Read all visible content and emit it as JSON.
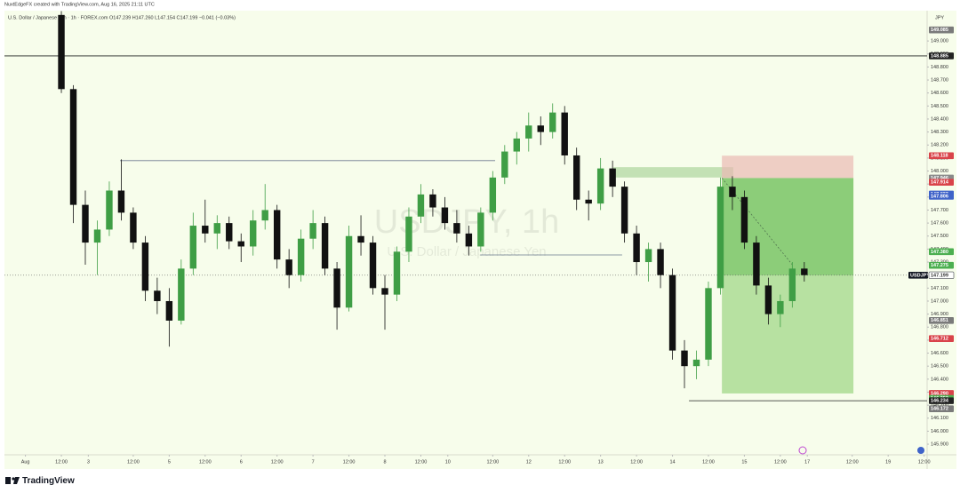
{
  "header": {
    "credit": "NuxtEdgeFX created with TradingView.com, Aug 16, 2025 21:11 UTC",
    "legend": "U.S. Dollar / Japanese Yen · 1h · FOREX.com   O147.239 H147.260 L147.154 C147.199 −0.041 (−0.03%)"
  },
  "footer": {
    "brand": "TradingView"
  },
  "chart_data": {
    "type": "candlestick",
    "watermark": "USDJPY, 1h",
    "watermark_sub": "U.S. Dollar / Japanese Yen",
    "currency": "JPY",
    "up_color": "#3f9e45",
    "down_color": "#111111",
    "xlim": [
      -7,
      301
    ],
    "ylim": [
      145.832,
      149.233
    ],
    "grid": false,
    "xticks": [
      {
        "value": 0,
        "label": "Aug"
      },
      {
        "value": 12,
        "label": "12:00"
      },
      {
        "value": 21,
        "label": "3"
      },
      {
        "value": 36,
        "label": "12:00"
      },
      {
        "value": 48,
        "label": "5"
      },
      {
        "value": 60,
        "label": "12:00"
      },
      {
        "value": 72,
        "label": "6"
      },
      {
        "value": 84,
        "label": "12:00"
      },
      {
        "value": 96,
        "label": "7"
      },
      {
        "value": 108,
        "label": "12:00"
      },
      {
        "value": 120,
        "label": "8"
      },
      {
        "value": 132,
        "label": "12:00"
      },
      {
        "value": 141,
        "label": "10"
      },
      {
        "value": 156,
        "label": "12:00"
      },
      {
        "value": 168,
        "label": "12"
      },
      {
        "value": 180,
        "label": "12:00"
      },
      {
        "value": 192,
        "label": "13"
      },
      {
        "value": 204,
        "label": "12:00"
      },
      {
        "value": 216,
        "label": "14"
      },
      {
        "value": 228,
        "label": "12:00"
      },
      {
        "value": 240,
        "label": "15"
      },
      {
        "value": 252,
        "label": "12:00"
      },
      {
        "value": 261,
        "label": "17"
      },
      {
        "value": 276,
        "label": "12:00"
      },
      {
        "value": 288,
        "label": "19"
      },
      {
        "value": 300,
        "label": "12:00"
      }
    ],
    "yticks": [
      {
        "value": 145.9,
        "label": "145.900"
      },
      {
        "value": 146.0,
        "label": "146.000"
      },
      {
        "value": 146.1,
        "label": "146.100"
      },
      {
        "value": 146.2,
        "label": "146.200"
      },
      {
        "value": 146.3,
        "label": "146.300"
      },
      {
        "value": 146.4,
        "label": "146.400"
      },
      {
        "value": 146.5,
        "label": "146.500"
      },
      {
        "value": 146.6,
        "label": "146.600"
      },
      {
        "value": 146.7,
        "label": "146.700"
      },
      {
        "value": 146.8,
        "label": "146.800"
      },
      {
        "value": 146.9,
        "label": "146.900"
      },
      {
        "value": 147.0,
        "label": "147.000"
      },
      {
        "value": 147.1,
        "label": "147.100"
      },
      {
        "value": 147.2,
        "label": "147.200"
      },
      {
        "value": 147.3,
        "label": "147.300"
      },
      {
        "value": 147.4,
        "label": "147.400"
      },
      {
        "value": 147.5,
        "label": "147.500"
      },
      {
        "value": 147.6,
        "label": "147.600"
      },
      {
        "value": 147.7,
        "label": "147.700"
      },
      {
        "value": 147.8,
        "label": "147.800"
      },
      {
        "value": 147.9,
        "label": "147.900"
      },
      {
        "value": 148.0,
        "label": "148.000"
      },
      {
        "value": 148.1,
        "label": "148.100"
      },
      {
        "value": 148.2,
        "label": "148.200"
      },
      {
        "value": 148.3,
        "label": "148.300"
      },
      {
        "value": 148.4,
        "label": "148.400"
      },
      {
        "value": 148.5,
        "label": "148.500"
      },
      {
        "value": 148.6,
        "label": "148.600"
      },
      {
        "value": 148.7,
        "label": "148.700"
      },
      {
        "value": 148.8,
        "label": "148.800"
      },
      {
        "value": 148.9,
        "label": "148.900"
      },
      {
        "value": 149.0,
        "label": "149.000"
      }
    ],
    "x": [
      12,
      16,
      20,
      24,
      28,
      32,
      36,
      40,
      44,
      48,
      52,
      56,
      60,
      64,
      68,
      72,
      76,
      80,
      84,
      88,
      92,
      96,
      100,
      104,
      108,
      112,
      116,
      120,
      124,
      128,
      132,
      136,
      140,
      144,
      148,
      152,
      156,
      160,
      164,
      168,
      172,
      176,
      180,
      184,
      188,
      192,
      196,
      200,
      204,
      208,
      212,
      216,
      220,
      224,
      228,
      232,
      236,
      240,
      244,
      248,
      252,
      256,
      260
    ],
    "open": [
      149.2,
      148.63,
      147.74,
      147.45,
      147.55,
      147.85,
      147.68,
      147.45,
      147.08,
      147.0,
      146.85,
      147.25,
      147.58,
      147.52,
      147.6,
      147.46,
      147.42,
      147.62,
      147.7,
      147.32,
      147.2,
      147.48,
      147.6,
      147.25,
      146.95,
      147.5,
      147.45,
      147.1,
      147.05,
      147.38,
      147.65,
      147.82,
      147.72,
      147.6,
      147.52,
      147.42,
      147.68,
      147.95,
      148.15,
      148.25,
      148.35,
      148.3,
      148.45,
      148.12,
      147.78,
      147.75,
      148.02,
      147.88,
      147.52,
      147.3,
      147.4,
      147.2,
      146.62,
      146.5,
      146.55,
      147.1,
      147.88,
      147.8,
      147.45,
      147.12,
      146.9,
      147.0,
      147.25
    ],
    "high": [
      149.23,
      148.66,
      147.85,
      147.62,
      147.92,
      148.09,
      147.72,
      147.5,
      147.18,
      147.1,
      147.32,
      147.68,
      147.78,
      147.66,
      147.65,
      147.52,
      147.7,
      147.9,
      147.74,
      147.4,
      147.55,
      147.7,
      147.65,
      147.3,
      147.58,
      147.66,
      147.5,
      147.2,
      147.42,
      147.72,
      147.9,
      147.86,
      147.8,
      147.7,
      147.58,
      147.72,
      148.0,
      148.2,
      148.3,
      148.45,
      148.42,
      148.52,
      148.5,
      148.18,
      147.85,
      148.1,
      148.08,
      147.92,
      147.58,
      147.45,
      147.45,
      147.25,
      146.7,
      146.62,
      147.15,
      147.95,
      147.96,
      147.85,
      147.5,
      147.18,
      147.05,
      147.3,
      147.3
    ],
    "low": [
      148.6,
      147.6,
      147.28,
      147.2,
      147.5,
      147.62,
      147.4,
      147.0,
      146.9,
      146.65,
      146.82,
      147.2,
      147.45,
      147.4,
      147.4,
      147.3,
      147.35,
      147.55,
      147.25,
      147.1,
      147.15,
      147.4,
      147.2,
      146.78,
      146.92,
      147.35,
      147.05,
      146.78,
      147.0,
      147.3,
      147.6,
      147.65,
      147.55,
      147.45,
      147.35,
      147.38,
      147.62,
      147.9,
      148.05,
      148.15,
      148.2,
      148.25,
      148.05,
      147.7,
      147.62,
      147.7,
      147.8,
      147.45,
      147.2,
      147.15,
      147.1,
      146.55,
      146.33,
      146.4,
      146.5,
      147.05,
      147.7,
      147.4,
      147.05,
      146.82,
      146.8,
      146.95,
      147.15
    ],
    "close": [
      148.63,
      147.74,
      147.45,
      147.55,
      147.85,
      147.68,
      147.45,
      147.08,
      147.0,
      146.85,
      147.25,
      147.58,
      147.52,
      147.6,
      147.46,
      147.42,
      147.62,
      147.7,
      147.32,
      147.2,
      147.48,
      147.6,
      147.25,
      146.95,
      147.5,
      147.45,
      147.1,
      147.05,
      147.38,
      147.65,
      147.82,
      147.72,
      147.6,
      147.52,
      147.42,
      147.68,
      147.95,
      148.15,
      148.25,
      148.35,
      148.3,
      148.45,
      148.12,
      147.78,
      147.75,
      148.02,
      147.88,
      147.52,
      147.3,
      147.4,
      147.2,
      146.62,
      146.5,
      146.55,
      147.1,
      147.88,
      147.8,
      147.45,
      147.12,
      146.9,
      147.0,
      147.25,
      147.2
    ],
    "levels": [
      {
        "y": 148.885,
        "x": [
          -7,
          301
        ],
        "color": "#222222"
      },
      {
        "y": 148.08,
        "x": [
          31.6,
          156.8
        ],
        "color": "#6b7a8f"
      },
      {
        "y": 147.355,
        "x": [
          151.8,
          199.2
        ],
        "color": "#6b7a8f"
      },
      {
        "y": 146.234,
        "x": [
          221.5,
          301
        ],
        "color": "#222222"
      }
    ],
    "zone": {
      "x": [
        196.3,
        236.3
      ],
      "y": [
        147.95,
        148.03
      ],
      "color": "#b5d9a6"
    },
    "position": {
      "x": [
        232.5,
        276.4
      ],
      "stop": 148.118,
      "entry": 147.946,
      "target": 146.29,
      "current": 147.199
    },
    "trend": {
      "x": [
        232.5,
        256
      ],
      "y": [
        147.946,
        147.28
      ]
    },
    "price_labels": [
      {
        "label": "149.085",
        "value": 149.085,
        "color": "#7a7a7a"
      },
      {
        "label": "148.885",
        "value": 148.885,
        "color": "#222222"
      },
      {
        "label": "148.118",
        "value": 148.118,
        "color": "#d9434a"
      },
      {
        "label": "147.946",
        "value": 147.946,
        "color": "#8a8a8a"
      },
      {
        "label": "147.914",
        "value": 147.914,
        "color": "#d9434a"
      },
      {
        "label": "147.823",
        "value": 147.823,
        "color": "#3f63c9"
      },
      {
        "label": "147.806",
        "value": 147.806,
        "color": "#3f63c9"
      },
      {
        "label": "147.380",
        "value": 147.38,
        "color": "#4caf50"
      },
      {
        "label": "147.275",
        "value": 147.275,
        "color": "#4caf50"
      },
      {
        "label": "146.851",
        "value": 146.851,
        "color": "#7a7a7a"
      },
      {
        "label": "146.712",
        "value": 146.712,
        "color": "#d9434a"
      },
      {
        "label": "146.290",
        "value": 146.29,
        "color": "#d9434a"
      },
      {
        "label": "146.252",
        "value": 146.252,
        "color": "#4caf50"
      },
      {
        "label": "146.234",
        "value": 146.234,
        "color": "#222222"
      },
      {
        "label": "146.172",
        "value": 146.172,
        "color": "#7a7a7a"
      }
    ],
    "last": {
      "symbol": "USDJPY",
      "value": 147.199,
      "label": "147.199"
    }
  }
}
